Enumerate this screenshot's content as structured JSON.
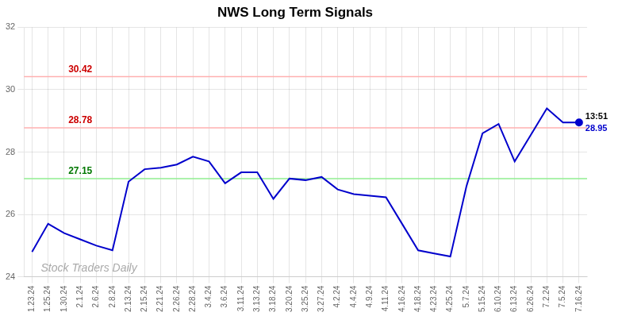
{
  "chart_data": {
    "type": "line",
    "title": "NWS Long Term Signals",
    "categories": [
      "1.23.24",
      "1.25.24",
      "1.30.24",
      "2.1.24",
      "2.6.24",
      "2.8.24",
      "2.13.24",
      "2.15.24",
      "2.21.24",
      "2.26.24",
      "2.28.24",
      "3.4.24",
      "3.6.24",
      "3.11.24",
      "3.13.24",
      "3.18.24",
      "3.20.24",
      "3.25.24",
      "3.27.24",
      "4.2.24",
      "4.4.24",
      "4.9.24",
      "4.11.24",
      "4.16.24",
      "4.18.24",
      "4.23.24",
      "4.25.24",
      "5.7.24",
      "5.15.24",
      "6.10.24",
      "6.13.24",
      "6.26.24",
      "7.2.24",
      "7.5.24",
      "7.16.24"
    ],
    "values": [
      24.8,
      25.7,
      25.4,
      25.2,
      25.0,
      24.85,
      27.05,
      27.45,
      27.5,
      27.6,
      27.85,
      27.7,
      27.0,
      27.35,
      27.35,
      26.5,
      27.15,
      27.1,
      27.2,
      26.8,
      26.65,
      26.6,
      26.55,
      25.7,
      24.85,
      24.75,
      24.65,
      26.9,
      28.6,
      28.9,
      27.7,
      28.55,
      29.4,
      28.95,
      28.95
    ],
    "color": "#0000cc",
    "ylim": [
      24,
      32
    ],
    "yticks": [
      24,
      26,
      28,
      30,
      32
    ],
    "grid": true,
    "hlines": [
      {
        "y": 30.42,
        "label": "30.42",
        "color": "#ffb0b0",
        "label_color": "#cc0000"
      },
      {
        "y": 28.78,
        "label": "28.78",
        "color": "#ffb0b0",
        "label_color": "#cc0000"
      },
      {
        "y": 27.15,
        "label": "27.15",
        "color": "#90ee90",
        "label_color": "#007700"
      }
    ],
    "annotations": [
      {
        "text": "13:51",
        "x": "7.16.24",
        "y": 28.95,
        "color": "#000000"
      },
      {
        "text": "28.95",
        "x": "7.16.24",
        "y": 28.95,
        "color": "#0000cc"
      },
      {
        "text": "Stock Traders Daily",
        "color": "#aaaaaa"
      }
    ]
  }
}
